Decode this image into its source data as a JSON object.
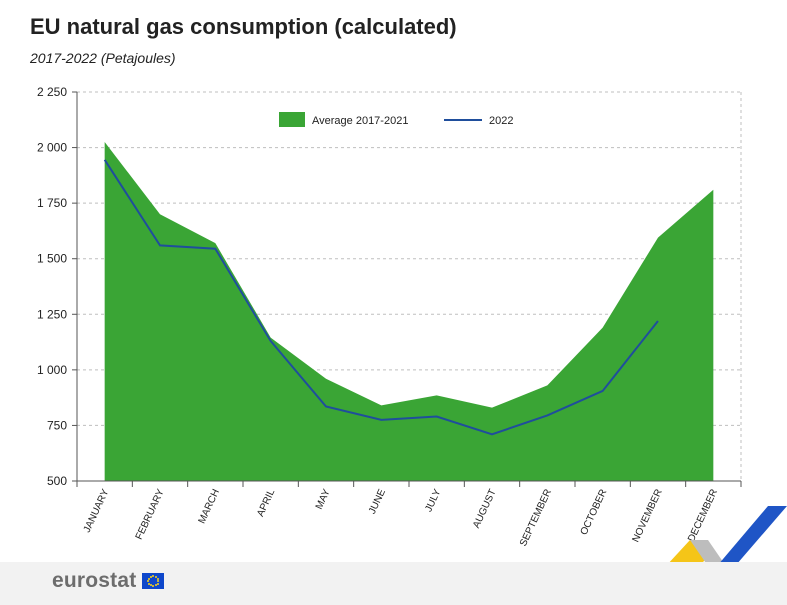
{
  "header": {
    "title": "EU natural gas consumption (calculated)",
    "subtitle": "2017-2022 (Petajoules)"
  },
  "footer": {
    "logo_text": "eurostat",
    "flag_icon": "eu-flag-icon"
  },
  "colors": {
    "area": "#3aa535",
    "line": "#1f4e9c",
    "grid": "#bfbfbf",
    "ribbon_yellow": "#f5c518",
    "ribbon_blue": "#1f55c6",
    "ribbon_grey": "#bdbdbd"
  },
  "chart_data": {
    "type": "area",
    "categories": [
      "JANUARY",
      "FEBRUARY",
      "MARCH",
      "APRIL",
      "MAY",
      "JUNE",
      "JULY",
      "AUGUST",
      "SEPTEMBER",
      "OCTOBER",
      "NOVEMBER",
      "DECEMBER"
    ],
    "series": [
      {
        "name": "Average 2017-2021",
        "type": "area",
        "values": [
          2025,
          1700,
          1570,
          1145,
          960,
          840,
          885,
          830,
          930,
          1190,
          1595,
          1810
        ]
      },
      {
        "name": "2022",
        "type": "line",
        "values": [
          1945,
          1560,
          1545,
          1130,
          835,
          775,
          790,
          710,
          795,
          905,
          1220,
          null
        ]
      }
    ],
    "ylim": [
      500,
      2250
    ],
    "yticks": [
      500,
      750,
      1000,
      1250,
      1500,
      1750,
      2000,
      2250
    ],
    "ytick_labels": [
      "500",
      "750",
      "1 000",
      "1 250",
      "1 500",
      "1 750",
      "2 000",
      "2 250"
    ],
    "xlabel": "",
    "ylabel": "",
    "grid": true,
    "legend_position": "top-center"
  }
}
